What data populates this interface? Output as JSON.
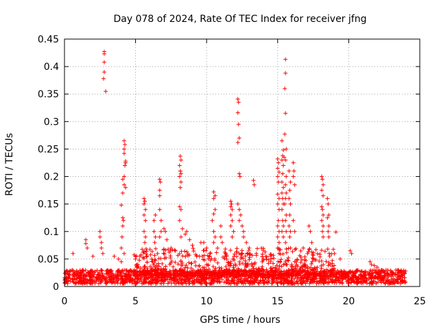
{
  "chart_data": {
    "type": "scatter",
    "title": "Day 078 of 2024, Rate Of TEC Index for receiver jfng",
    "xlabel": "GPS time / hours",
    "ylabel": "ROTI / TECUs",
    "xlim": [
      0,
      25
    ],
    "ylim": [
      0,
      0.45
    ],
    "xticks": [
      0,
      5,
      10,
      15,
      20,
      25
    ],
    "yticks": [
      0,
      0.05,
      0.1,
      0.15,
      0.2,
      0.25,
      0.3,
      0.35,
      0.4,
      0.45
    ],
    "grid": true,
    "series": [
      {
        "name": "ROTI",
        "color": "#ff0000",
        "marker": "+",
        "base_band": {
          "x_range": [
            0,
            24
          ],
          "y_range": [
            0.005,
            0.03
          ]
        },
        "points": [
          [
            0.6,
            0.06
          ],
          [
            1.5,
            0.085
          ],
          [
            1.5,
            0.078
          ],
          [
            1.6,
            0.07
          ],
          [
            2.0,
            0.055
          ],
          [
            2.5,
            0.1
          ],
          [
            2.5,
            0.09
          ],
          [
            2.6,
            0.08
          ],
          [
            2.6,
            0.07
          ],
          [
            2.7,
            0.06
          ],
          [
            2.8,
            0.427
          ],
          [
            2.8,
            0.423
          ],
          [
            2.8,
            0.408
          ],
          [
            2.8,
            0.39
          ],
          [
            2.75,
            0.378
          ],
          [
            2.9,
            0.355
          ],
          [
            3.5,
            0.055
          ],
          [
            3.8,
            0.05
          ],
          [
            4.0,
            0.045
          ],
          [
            4.2,
            0.265
          ],
          [
            4.25,
            0.258
          ],
          [
            4.2,
            0.25
          ],
          [
            4.2,
            0.242
          ],
          [
            4.3,
            0.228
          ],
          [
            4.3,
            0.225
          ],
          [
            4.25,
            0.22
          ],
          [
            4.2,
            0.2
          ],
          [
            4.1,
            0.195
          ],
          [
            4.2,
            0.185
          ],
          [
            4.3,
            0.18
          ],
          [
            4.1,
            0.17
          ],
          [
            4.0,
            0.148
          ],
          [
            4.1,
            0.125
          ],
          [
            4.15,
            0.12
          ],
          [
            4.1,
            0.11
          ],
          [
            4.05,
            0.09
          ],
          [
            4.0,
            0.07
          ],
          [
            4.2,
            0.06
          ],
          [
            5.0,
            0.05
          ],
          [
            5.3,
            0.055
          ],
          [
            5.6,
            0.16
          ],
          [
            5.65,
            0.155
          ],
          [
            5.6,
            0.15
          ],
          [
            5.7,
            0.14
          ],
          [
            5.6,
            0.13
          ],
          [
            5.7,
            0.12
          ],
          [
            5.6,
            0.1
          ],
          [
            5.7,
            0.09
          ],
          [
            5.65,
            0.08
          ],
          [
            6.3,
            0.12
          ],
          [
            6.4,
            0.13
          ],
          [
            6.3,
            0.1
          ],
          [
            6.4,
            0.09
          ],
          [
            6.35,
            0.08
          ],
          [
            6.7,
            0.195
          ],
          [
            6.75,
            0.19
          ],
          [
            6.7,
            0.175
          ],
          [
            6.7,
            0.165
          ],
          [
            6.7,
            0.14
          ],
          [
            6.8,
            0.12
          ],
          [
            6.8,
            0.1
          ],
          [
            6.7,
            0.09
          ],
          [
            7.0,
            0.105
          ],
          [
            7.1,
            0.1
          ],
          [
            7.2,
            0.085
          ],
          [
            7.5,
            0.07
          ],
          [
            7.8,
            0.065
          ],
          [
            8.15,
            0.237
          ],
          [
            8.2,
            0.23
          ],
          [
            8.1,
            0.22
          ],
          [
            8.15,
            0.21
          ],
          [
            8.2,
            0.205
          ],
          [
            8.1,
            0.2
          ],
          [
            8.2,
            0.19
          ],
          [
            8.15,
            0.18
          ],
          [
            8.1,
            0.145
          ],
          [
            8.2,
            0.14
          ],
          [
            8.1,
            0.12
          ],
          [
            8.3,
            0.105
          ],
          [
            8.2,
            0.09
          ],
          [
            8.5,
            0.095
          ],
          [
            8.6,
            0.1
          ],
          [
            8.8,
            0.085
          ],
          [
            9.0,
            0.075
          ],
          [
            9.5,
            0.055
          ],
          [
            9.6,
            0.08
          ],
          [
            9.8,
            0.08
          ],
          [
            10.0,
            0.07
          ],
          [
            10.2,
            0.055
          ],
          [
            10.5,
            0.172
          ],
          [
            10.6,
            0.165
          ],
          [
            10.5,
            0.16
          ],
          [
            10.6,
            0.14
          ],
          [
            10.5,
            0.132
          ],
          [
            10.4,
            0.12
          ],
          [
            10.5,
            0.1
          ],
          [
            10.6,
            0.09
          ],
          [
            10.5,
            0.08
          ],
          [
            11.0,
            0.09
          ],
          [
            11.0,
            0.11
          ],
          [
            11.1,
            0.08
          ],
          [
            11.7,
            0.155
          ],
          [
            11.75,
            0.15
          ],
          [
            11.7,
            0.145
          ],
          [
            11.8,
            0.14
          ],
          [
            11.7,
            0.13
          ],
          [
            11.8,
            0.12
          ],
          [
            11.7,
            0.11
          ],
          [
            11.9,
            0.1
          ],
          [
            11.8,
            0.09
          ],
          [
            12.2,
            0.341
          ],
          [
            12.25,
            0.335
          ],
          [
            12.2,
            0.316
          ],
          [
            12.25,
            0.295
          ],
          [
            12.3,
            0.27
          ],
          [
            12.2,
            0.262
          ],
          [
            12.3,
            0.205
          ],
          [
            12.35,
            0.2
          ],
          [
            12.2,
            0.15
          ],
          [
            12.3,
            0.14
          ],
          [
            12.4,
            0.13
          ],
          [
            12.3,
            0.12
          ],
          [
            12.5,
            0.11
          ],
          [
            12.6,
            0.1
          ],
          [
            12.6,
            0.09
          ],
          [
            12.8,
            0.08
          ],
          [
            13.0,
            0.07
          ],
          [
            13.3,
            0.193
          ],
          [
            13.35,
            0.185
          ],
          [
            13.5,
            0.06
          ],
          [
            14.0,
            0.05
          ],
          [
            14.5,
            0.045
          ],
          [
            15.0,
            0.232
          ],
          [
            15.05,
            0.225
          ],
          [
            15.0,
            0.215
          ],
          [
            15.1,
            0.208
          ],
          [
            15.0,
            0.2
          ],
          [
            15.05,
            0.19
          ],
          [
            15.0,
            0.168
          ],
          [
            15.1,
            0.16
          ],
          [
            15.0,
            0.15
          ],
          [
            15.1,
            0.14
          ],
          [
            15.05,
            0.12
          ],
          [
            15.0,
            0.11
          ],
          [
            15.1,
            0.1
          ],
          [
            15.0,
            0.09
          ],
          [
            15.1,
            0.08
          ],
          [
            15.0,
            0.07
          ],
          [
            15.1,
            0.06
          ],
          [
            15.3,
            0.265
          ],
          [
            15.4,
            0.248
          ],
          [
            15.35,
            0.238
          ],
          [
            15.45,
            0.235
          ],
          [
            15.3,
            0.23
          ],
          [
            15.4,
            0.22
          ],
          [
            15.35,
            0.205
          ],
          [
            15.3,
            0.19
          ],
          [
            15.4,
            0.18
          ],
          [
            15.3,
            0.17
          ],
          [
            15.35,
            0.16
          ],
          [
            15.4,
            0.15
          ],
          [
            15.3,
            0.14
          ],
          [
            15.35,
            0.12
          ],
          [
            15.4,
            0.11
          ],
          [
            15.3,
            0.1
          ],
          [
            15.4,
            0.09
          ],
          [
            15.55,
            0.413
          ],
          [
            15.55,
            0.388
          ],
          [
            15.5,
            0.36
          ],
          [
            15.55,
            0.315
          ],
          [
            15.5,
            0.277
          ],
          [
            15.6,
            0.25
          ],
          [
            15.55,
            0.23
          ],
          [
            15.6,
            0.2
          ],
          [
            15.55,
            0.185
          ],
          [
            15.6,
            0.17
          ],
          [
            15.55,
            0.16
          ],
          [
            15.5,
            0.15
          ],
          [
            15.6,
            0.13
          ],
          [
            15.55,
            0.12
          ],
          [
            15.6,
            0.1
          ],
          [
            15.55,
            0.08
          ],
          [
            15.8,
            0.21
          ],
          [
            15.9,
            0.19
          ],
          [
            15.85,
            0.175
          ],
          [
            15.8,
            0.16
          ],
          [
            15.9,
            0.15
          ],
          [
            15.85,
            0.13
          ],
          [
            15.8,
            0.11
          ],
          [
            15.9,
            0.1
          ],
          [
            15.85,
            0.09
          ],
          [
            15.9,
            0.07
          ],
          [
            16.1,
            0.225
          ],
          [
            16.15,
            0.21
          ],
          [
            16.1,
            0.2
          ],
          [
            16.2,
            0.185
          ],
          [
            16.1,
            0.12
          ],
          [
            16.2,
            0.1
          ],
          [
            16.8,
            0.07
          ],
          [
            17.1,
            0.06
          ],
          [
            17.5,
            0.05
          ],
          [
            18.1,
            0.2
          ],
          [
            18.15,
            0.195
          ],
          [
            18.2,
            0.185
          ],
          [
            18.1,
            0.175
          ],
          [
            18.2,
            0.165
          ],
          [
            18.1,
            0.145
          ],
          [
            18.15,
            0.14
          ],
          [
            18.2,
            0.13
          ],
          [
            18.1,
            0.12
          ],
          [
            18.2,
            0.11
          ],
          [
            18.15,
            0.1
          ],
          [
            18.2,
            0.09
          ],
          [
            18.5,
            0.16
          ],
          [
            18.55,
            0.15
          ],
          [
            18.6,
            0.13
          ],
          [
            18.5,
            0.125
          ],
          [
            18.6,
            0.11
          ],
          [
            18.55,
            0.1
          ],
          [
            18.6,
            0.09
          ],
          [
            17.2,
            0.11
          ],
          [
            17.3,
            0.1
          ],
          [
            17.4,
            0.08
          ],
          [
            19.1,
            0.099
          ],
          [
            19.0,
            0.06
          ],
          [
            19.4,
            0.05
          ],
          [
            20.1,
            0.065
          ],
          [
            20.2,
            0.06
          ],
          [
            21.5,
            0.045
          ],
          [
            21.6,
            0.04
          ],
          [
            21.8,
            0.038
          ],
          [
            22.0,
            0.035
          ]
        ]
      }
    ]
  }
}
